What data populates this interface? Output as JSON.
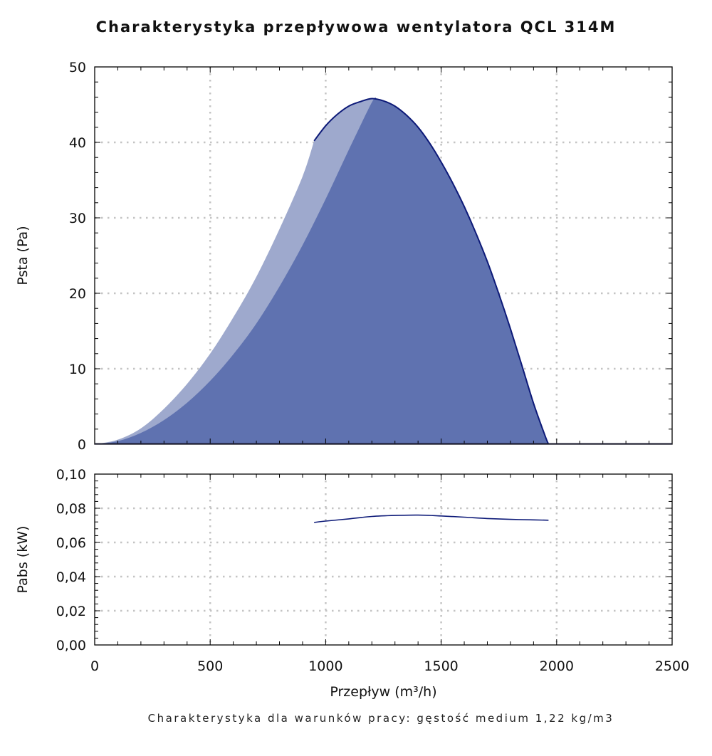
{
  "title": "Charakterystyka przepływowa wentylatora QCL 314M",
  "footer": "Charakterystyka dla warunków pracy: gęstość medium 1,22 kg/m3",
  "colors": {
    "fill_light": "#9ea9cd",
    "fill_dark": "#5f72b0",
    "line": "#0d1a78",
    "grid": "#c4c4c4",
    "axis": "#000000"
  },
  "chart_data": [
    {
      "type": "area",
      "xlabel": "Przepływ (m³/h)",
      "ylabel": "Psta (Pa)",
      "xlim": [
        0,
        2500
      ],
      "ylim": [
        0,
        50
      ],
      "x_ticks": [
        0,
        500,
        1000,
        1500,
        2000,
        2500
      ],
      "y_ticks": [
        "0",
        "10",
        "20",
        "30",
        "40",
        "50"
      ],
      "grid": true,
      "series": [
        {
          "x": [
            0,
            100,
            200,
            300,
            400,
            500,
            600,
            700,
            800,
            900,
            950
          ],
          "values": [
            0,
            0.6,
            2.1,
            4.7,
            8.0,
            12.0,
            16.8,
            22.2,
            28.5,
            35.5,
            40.2
          ]
        },
        {
          "x": [
            950,
            1000,
            1050,
            1100,
            1150,
            1200,
            1250,
            1300,
            1350,
            1400,
            1450,
            1500,
            1550,
            1600,
            1650,
            1700,
            1750,
            1800,
            1850,
            1900,
            1950,
            1965
          ],
          "values": [
            40.2,
            42.2,
            43.7,
            44.8,
            45.4,
            45.8,
            45.5,
            44.8,
            43.6,
            42.0,
            39.9,
            37.4,
            34.6,
            31.5,
            28.0,
            24.2,
            19.9,
            15.3,
            10.4,
            5.4,
            1.1,
            0.0
          ]
        },
        {
          "x": [
            0,
            100,
            200,
            300,
            400,
            500,
            600,
            700,
            800,
            900,
            1000,
            1100,
            1200,
            1220
          ],
          "values": [
            0,
            0.4,
            1.5,
            3.2,
            5.5,
            8.4,
            11.9,
            16.0,
            20.9,
            26.4,
            32.5,
            39.0,
            45.3,
            45.8
          ]
        }
      ]
    },
    {
      "type": "line",
      "xlabel": "Przepływ (m³/h)",
      "ylabel": "Pabs (kW)",
      "xlim": [
        0,
        2500
      ],
      "ylim": [
        0,
        0.1
      ],
      "x_ticks": [
        "0",
        "500",
        "1000",
        "1500",
        "2000",
        "2500"
      ],
      "y_ticks": [
        "0,00",
        "0,02",
        "0,04",
        "0,06",
        "0,08",
        "0,10"
      ],
      "grid": true,
      "series": [
        {
          "x": [
            950,
            1000,
            1100,
            1200,
            1300,
            1400,
            1500,
            1600,
            1700,
            1800,
            1900,
            1965
          ],
          "values": [
            0.0717,
            0.0725,
            0.0738,
            0.0752,
            0.0758,
            0.076,
            0.0755,
            0.0748,
            0.074,
            0.0735,
            0.0732,
            0.073
          ]
        }
      ]
    }
  ]
}
